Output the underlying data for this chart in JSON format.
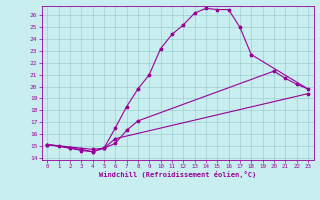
{
  "xlabel": "Windchill (Refroidissement éolien,°C)",
  "background_color": "#c8eef0",
  "grid_color": "#9dcfcf",
  "line_color": "#990099",
  "xlim": [
    -0.5,
    23.5
  ],
  "ylim": [
    13.8,
    26.8
  ],
  "xticks": [
    0,
    1,
    2,
    3,
    4,
    5,
    6,
    7,
    8,
    9,
    10,
    11,
    12,
    13,
    14,
    15,
    16,
    17,
    18,
    19,
    20,
    21,
    22,
    23
  ],
  "yticks": [
    14,
    15,
    16,
    17,
    18,
    19,
    20,
    21,
    22,
    23,
    24,
    25,
    26
  ],
  "curve1_x": [
    0,
    1,
    2,
    3,
    4,
    5,
    6,
    7,
    8,
    9,
    10,
    11,
    12,
    13,
    14,
    15,
    16,
    17,
    18
  ],
  "curve1_y": [
    15.1,
    15.0,
    14.8,
    14.6,
    14.5,
    14.8,
    16.5,
    18.3,
    19.8,
    21.0,
    23.2,
    24.4,
    25.2,
    26.2,
    26.6,
    26.5,
    26.5,
    25.0,
    22.7
  ],
  "curve2_x": [
    0,
    2,
    3,
    4,
    5,
    6,
    7,
    8,
    20,
    21,
    22,
    23
  ],
  "curve2_y": [
    15.1,
    14.8,
    14.7,
    14.5,
    14.8,
    15.2,
    16.3,
    17.1,
    21.3,
    20.7,
    20.2,
    19.8
  ],
  "curve3_x": [
    0,
    4,
    5,
    6,
    23
  ],
  "curve3_y": [
    15.1,
    14.7,
    14.8,
    15.6,
    19.4
  ]
}
